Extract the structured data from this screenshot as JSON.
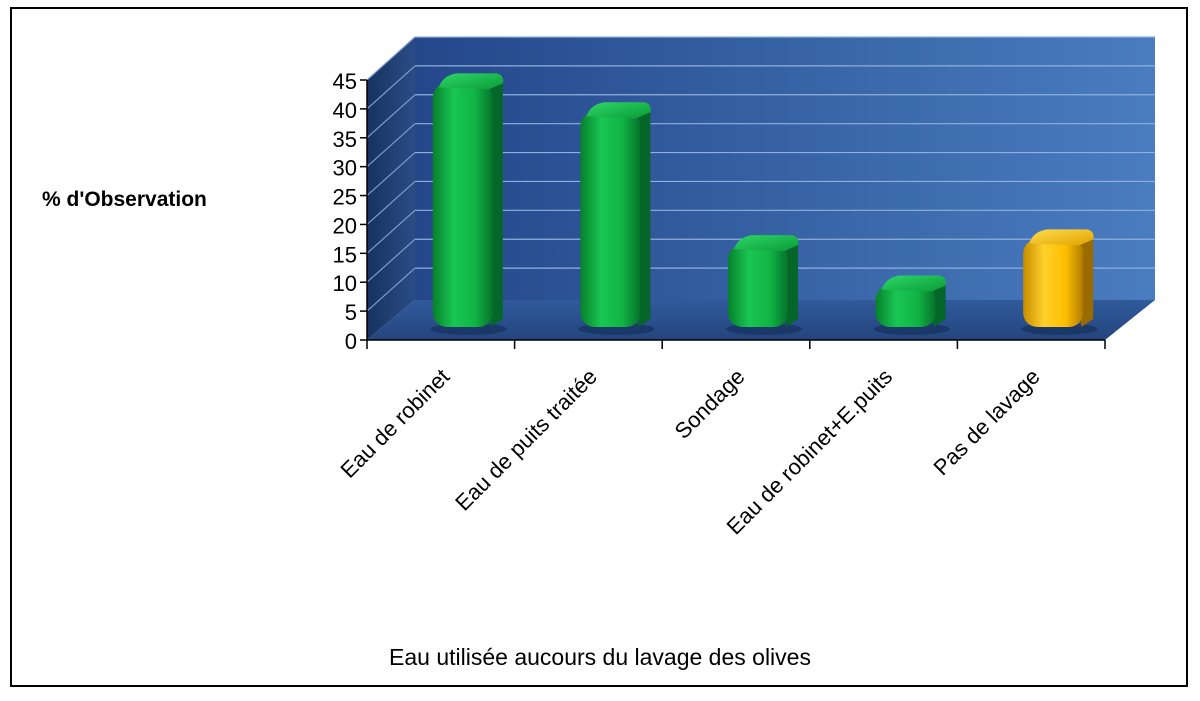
{
  "chart_data": {
    "type": "bar",
    "categories": [
      "Eau de robinet",
      "Eau de puits traitée",
      "Sondage",
      "Eau de robinet+E.puits",
      "Pas de lavage"
    ],
    "values": [
      42,
      37,
      14,
      7,
      15
    ],
    "colors": [
      "#10b445",
      "#10b445",
      "#10b445",
      "#10b445",
      "#ffbf00"
    ],
    "title": "",
    "xlabel": "Eau utilisée aucours du lavage des olives",
    "ylabel": "% d'Observation",
    "ylim": [
      0,
      45
    ],
    "yticks": [
      "0",
      "5",
      "10",
      "15",
      "20",
      "25",
      "30",
      "35",
      "40",
      "45"
    ],
    "grid": true,
    "legend": "none",
    "style": "3d-cylinder-bars",
    "wall_color": "#3f70b0",
    "floor_color": "#2a4f8f"
  }
}
